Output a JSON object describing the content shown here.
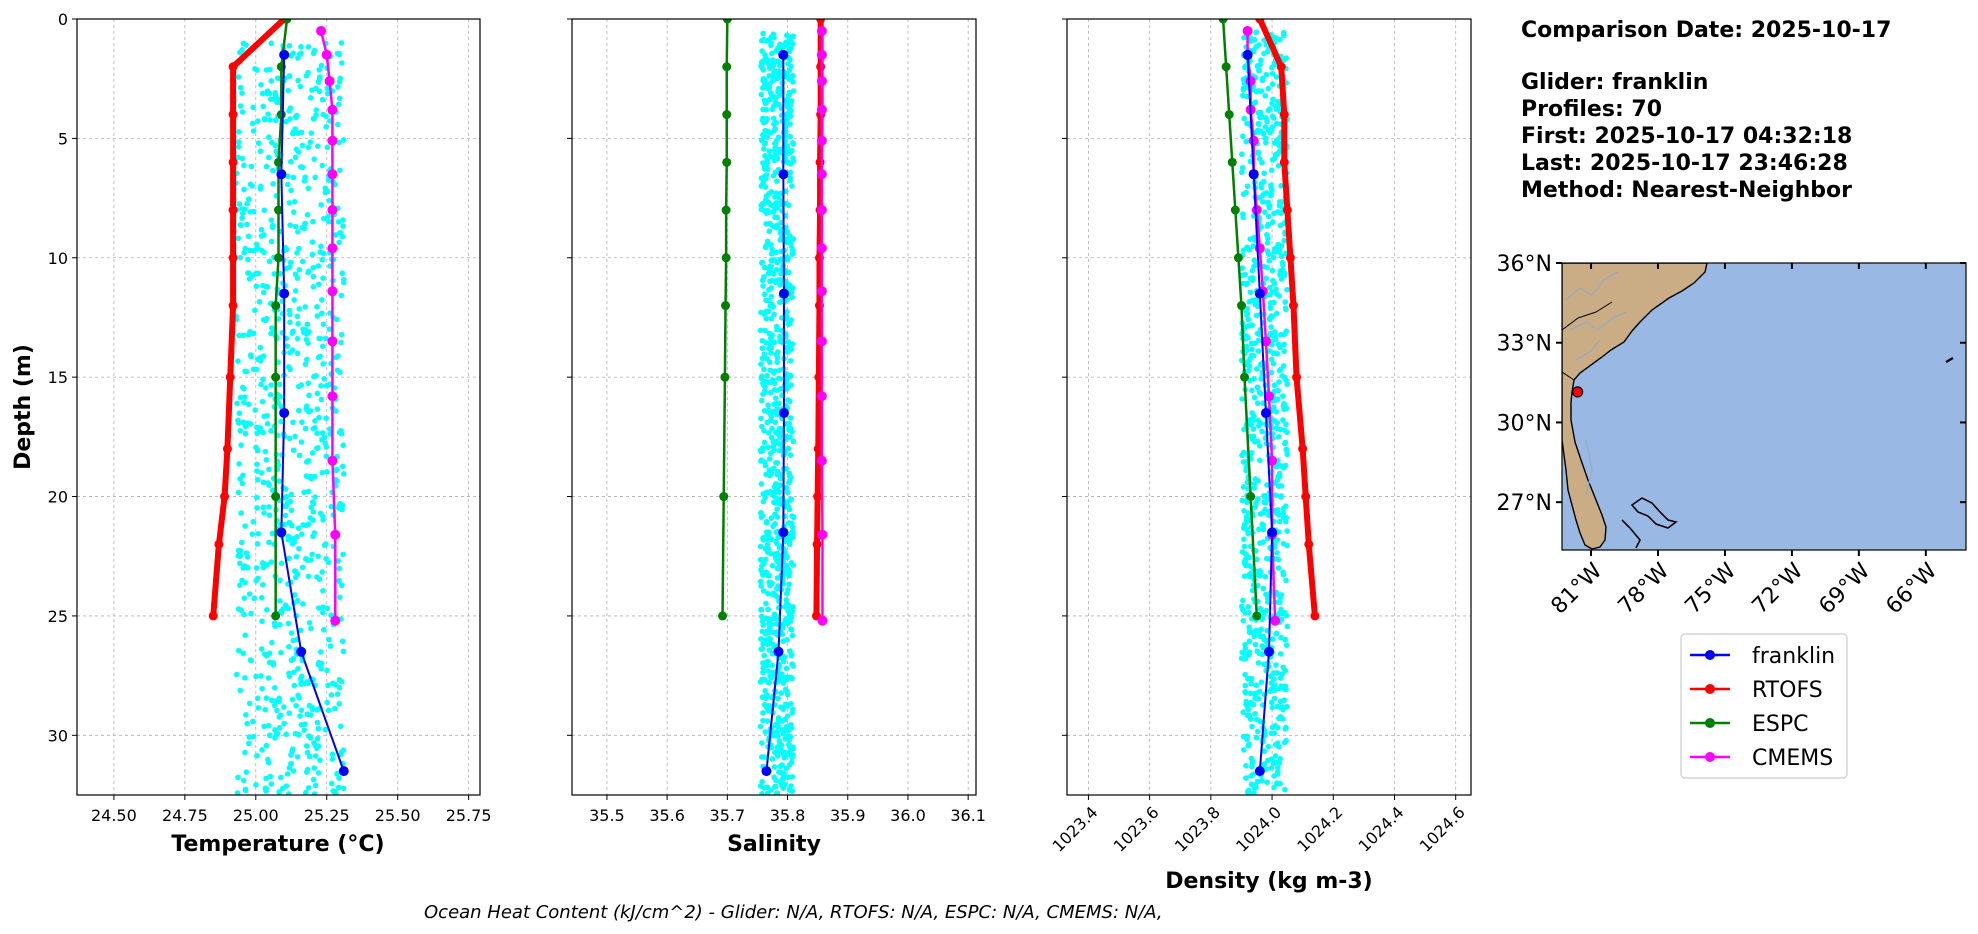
{
  "colors": {
    "franklin": "#0000ff",
    "rtofs": "#ff0000",
    "espc": "#008000",
    "cmems": "#ff00ff",
    "glider_scatter": "#00ffff",
    "ocean": "#99b8e3",
    "land": "#caad84",
    "rivers": "#9aa9c4",
    "grid": "#b0b0b0",
    "glider_marker": "#ff0000"
  },
  "chart_data": [
    {
      "type": "line",
      "id": "temperature",
      "xlabel": "Temperature (°C)",
      "ylabel": "Depth (m)",
      "xlim": [
        24.37,
        25.79
      ],
      "ylim": [
        32.5,
        0
      ],
      "xticks": [
        24.5,
        24.75,
        25.0,
        25.25,
        25.5,
        25.75
      ],
      "xtick_labels": [
        "24.50",
        "24.75",
        "25.00",
        "25.25",
        "25.50",
        "25.75"
      ],
      "yticks": [
        0,
        5,
        10,
        15,
        20,
        25,
        30
      ],
      "ytick_labels": [
        "0",
        "5",
        "10",
        "15",
        "20",
        "25",
        "30"
      ],
      "grid": true,
      "glider_scatter": {
        "xmin": 24.93,
        "xmax": 25.31,
        "depth_min": 1.0,
        "depth_max": 32.5,
        "points": 900,
        "seed": 11
      },
      "series": [
        {
          "key": "rtofs",
          "name": "RTOFS",
          "linewidth": 6,
          "marker": 9,
          "x": [
            25.1,
            24.92,
            24.92,
            24.92,
            24.92,
            24.92,
            24.92,
            24.91,
            24.9,
            24.89,
            24.87,
            24.85
          ],
          "y": [
            0,
            2,
            4,
            6,
            8,
            10,
            12,
            15,
            18,
            20,
            22,
            25
          ]
        },
        {
          "key": "espc",
          "name": "ESPC",
          "linewidth": 2.5,
          "marker": 9,
          "x": [
            25.11,
            25.09,
            25.09,
            25.08,
            25.08,
            25.08,
            25.07,
            25.07,
            25.07,
            25.07
          ],
          "y": [
            0,
            2,
            4,
            6,
            8,
            10,
            12,
            15,
            20,
            25
          ]
        },
        {
          "key": "cmems",
          "name": "CMEMS",
          "linewidth": 2.5,
          "marker": 10,
          "x": [
            25.23,
            25.25,
            25.26,
            25.27,
            25.27,
            25.27,
            25.27,
            25.27,
            25.27,
            25.27,
            25.27,
            25.27,
            25.28,
            25.28
          ],
          "y": [
            0.5,
            1.5,
            2.6,
            3.8,
            5.1,
            6.5,
            8.0,
            9.6,
            11.4,
            13.5,
            15.8,
            18.5,
            21.6,
            25.2
          ]
        },
        {
          "key": "franklin",
          "name": "franklin",
          "linewidth": 2,
          "marker": 10,
          "x": [
            25.1,
            25.09,
            25.1,
            25.1,
            25.09,
            25.16,
            25.31
          ],
          "y": [
            1.5,
            6.5,
            11.5,
            16.5,
            21.5,
            26.5,
            31.5
          ]
        }
      ]
    },
    {
      "type": "line",
      "id": "salinity",
      "xlabel": "Salinity",
      "xlim": [
        35.442,
        36.113
      ],
      "ylim": [
        32.5,
        0
      ],
      "xticks": [
        35.5,
        35.6,
        35.7,
        35.8,
        35.9,
        36.0,
        36.1
      ],
      "xtick_labels": [
        "35.5",
        "35.6",
        "35.7",
        "35.8",
        "35.9",
        "36.0",
        "36.1"
      ],
      "yticks": [
        0,
        5,
        10,
        15,
        20,
        25,
        30
      ],
      "grid": true,
      "glider_scatter": {
        "xmin": 35.755,
        "xmax": 35.81,
        "depth_min": 0.6,
        "depth_max": 32.5,
        "points": 1000,
        "seed": 23
      },
      "series": [
        {
          "key": "rtofs",
          "name": "RTOFS",
          "linewidth": 6,
          "marker": 9,
          "x": [
            35.855,
            35.855,
            35.855,
            35.854,
            35.854,
            35.853,
            35.853,
            35.852,
            35.851,
            35.85,
            35.849,
            35.848
          ],
          "y": [
            0,
            2,
            4,
            6,
            8,
            10,
            12,
            15,
            18,
            20,
            22,
            25
          ]
        },
        {
          "key": "espc",
          "name": "ESPC",
          "linewidth": 2.5,
          "marker": 9,
          "x": [
            35.7,
            35.699,
            35.699,
            35.699,
            35.698,
            35.698,
            35.697,
            35.696,
            35.694,
            35.692
          ],
          "y": [
            0,
            2,
            4,
            6,
            8,
            10,
            12,
            15,
            20,
            25
          ]
        },
        {
          "key": "cmems",
          "name": "CMEMS",
          "linewidth": 2.5,
          "marker": 10,
          "x": [
            35.857,
            35.857,
            35.857,
            35.857,
            35.857,
            35.857,
            35.857,
            35.857,
            35.857,
            35.857,
            35.857,
            35.857,
            35.858,
            35.858
          ],
          "y": [
            0.5,
            1.5,
            2.6,
            3.8,
            5.1,
            6.5,
            8.0,
            9.6,
            11.4,
            13.5,
            15.8,
            18.5,
            21.6,
            25.2
          ]
        },
        {
          "key": "franklin",
          "name": "franklin",
          "linewidth": 2,
          "marker": 10,
          "x": [
            35.793,
            35.793,
            35.794,
            35.794,
            35.793,
            35.785,
            35.765
          ],
          "y": [
            1.5,
            6.5,
            11.5,
            16.5,
            21.5,
            26.5,
            31.5
          ]
        }
      ]
    },
    {
      "type": "line",
      "id": "density",
      "xlabel": "Density (kg m-3)",
      "xlim": [
        1023.33,
        1024.65
      ],
      "ylim": [
        32.5,
        0
      ],
      "xticks": [
        1023.4,
        1023.6,
        1023.8,
        1024.0,
        1024.2,
        1024.4,
        1024.6
      ],
      "xtick_labels": [
        "1023.4",
        "1023.6",
        "1023.8",
        "1024.0",
        "1024.2",
        "1024.4",
        "1024.6"
      ],
      "yticks": [
        0,
        5,
        10,
        15,
        20,
        25,
        30
      ],
      "grid": true,
      "glider_scatter": {
        "xmin": 1023.9,
        "xmax": 1024.05,
        "depth_min": 0.5,
        "depth_max": 32.5,
        "points": 900,
        "seed": 37
      },
      "series": [
        {
          "key": "rtofs",
          "name": "RTOFS",
          "linewidth": 6,
          "marker": 9,
          "x": [
            1023.96,
            1024.03,
            1024.04,
            1024.04,
            1024.05,
            1024.06,
            1024.07,
            1024.08,
            1024.1,
            1024.11,
            1024.12,
            1024.14
          ],
          "y": [
            0,
            2,
            4,
            6,
            8,
            10,
            12,
            15,
            18,
            20,
            22,
            25
          ]
        },
        {
          "key": "espc",
          "name": "ESPC",
          "linewidth": 2.5,
          "marker": 9,
          "x": [
            1023.84,
            1023.85,
            1023.86,
            1023.87,
            1023.88,
            1023.89,
            1023.9,
            1023.91,
            1023.93,
            1023.95
          ],
          "y": [
            0,
            2,
            4,
            6,
            8,
            10,
            12,
            15,
            20,
            25
          ]
        },
        {
          "key": "cmems",
          "name": "CMEMS",
          "linewidth": 2.5,
          "marker": 10,
          "x": [
            1023.92,
            1023.92,
            1023.93,
            1023.93,
            1023.94,
            1023.94,
            1023.95,
            1023.96,
            1023.97,
            1023.98,
            1023.99,
            1024.0,
            1024.0,
            1024.01
          ],
          "y": [
            0.5,
            1.5,
            2.6,
            3.8,
            5.1,
            6.5,
            8.0,
            9.6,
            11.4,
            13.5,
            15.8,
            18.5,
            21.6,
            25.2
          ]
        },
        {
          "key": "franklin",
          "name": "franklin",
          "linewidth": 2,
          "marker": 10,
          "x": [
            1023.92,
            1023.94,
            1023.96,
            1023.98,
            1024.0,
            1023.99,
            1023.96
          ],
          "y": [
            1.5,
            6.5,
            11.5,
            16.5,
            21.5,
            26.5,
            31.5
          ]
        }
      ]
    }
  ],
  "info": {
    "comparison_date": "Comparison Date: 2025-10-17",
    "glider": "Glider: franklin",
    "profiles": "Profiles: 70",
    "first": "First: 2025-10-17 04:32:18",
    "last": "Last: 2025-10-17 23:46:28",
    "method": "Method: Nearest-Neighbor"
  },
  "map": {
    "lon_range": [
      -82.3,
      -64.2
    ],
    "lat_range": [
      25.2,
      36.0
    ],
    "lat_ticks": [
      {
        "value": 36,
        "label": "36°N"
      },
      {
        "value": 33,
        "label": "33°N"
      },
      {
        "value": 30,
        "label": "30°N"
      },
      {
        "value": 27,
        "label": "27°N"
      }
    ],
    "lon_ticks": [
      {
        "value": -81,
        "label": "81°W"
      },
      {
        "value": -78,
        "label": "78°W"
      },
      {
        "value": -75,
        "label": "75°W"
      },
      {
        "value": -72,
        "label": "72°W"
      },
      {
        "value": -69,
        "label": "69°W"
      },
      {
        "value": -66,
        "label": "66°W"
      }
    ],
    "glider_position": {
      "lon": -81.6,
      "lat": 31.15
    }
  },
  "legend": [
    {
      "key": "franklin",
      "label": "franklin"
    },
    {
      "key": "rtofs",
      "label": "RTOFS"
    },
    {
      "key": "espc",
      "label": "ESPC"
    },
    {
      "key": "cmems",
      "label": "CMEMS"
    }
  ],
  "footer": {
    "text": "Ocean Heat Content (kJ/cm^2) - Glider: N/A,  RTOFS: N/A,  ESPC: N/A,  CMEMS: N/A,"
  }
}
